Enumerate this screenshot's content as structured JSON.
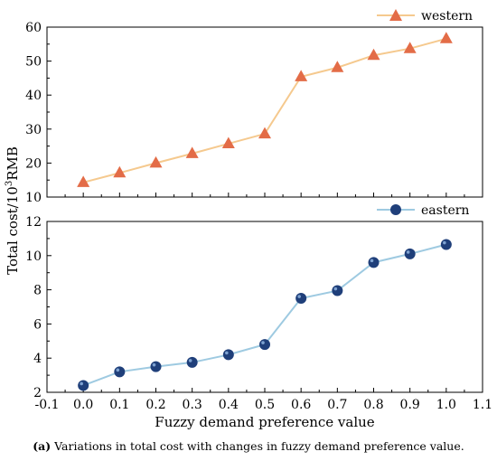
{
  "chart_data": [
    {
      "type": "line",
      "x": [
        0.0,
        0.1,
        0.2,
        0.3,
        0.4,
        0.5,
        0.6,
        0.7,
        0.8,
        0.9,
        1.0
      ],
      "series": [
        {
          "name": "western",
          "values": [
            14.3,
            17.1,
            20.0,
            22.8,
            25.7,
            28.6,
            45.4,
            48.1,
            51.7,
            53.7,
            56.6
          ],
          "color": "#f5c98e",
          "marker": "triangle",
          "marker_color": "#e36c47"
        }
      ],
      "ylim": [
        10,
        60
      ],
      "yticks": [
        "10",
        "20",
        "30",
        "40",
        "50",
        "60"
      ],
      "legend_position": "top-right"
    },
    {
      "type": "line",
      "x": [
        0.0,
        0.1,
        0.2,
        0.3,
        0.4,
        0.5,
        0.6,
        0.7,
        0.8,
        0.9,
        1.0
      ],
      "series": [
        {
          "name": "eastern",
          "values": [
            2.4,
            3.2,
            3.5,
            3.75,
            4.2,
            4.8,
            7.5,
            7.95,
            9.6,
            10.1,
            10.65
          ],
          "color": "#9ecae1",
          "marker": "circle",
          "marker_color": "#1f3f7a"
        }
      ],
      "ylim": [
        2,
        12
      ],
      "yticks": [
        "2",
        "4",
        "6",
        "8",
        "10",
        "12"
      ],
      "xlim": [
        -0.1,
        1.1
      ],
      "xticks": [
        "-0.1",
        "0.0",
        "0.1",
        "0.2",
        "0.3",
        "0.4",
        "0.5",
        "0.6",
        "0.7",
        "0.8",
        "0.9",
        "1.0",
        "1.1"
      ],
      "legend_position": "top-right"
    }
  ],
  "xlabel": "Fuzzy demand preference value",
  "ylabel_main": "Total cost/10",
  "ylabel_sup": "3",
  "ylabel_unit": "RMB",
  "caption_tag": "(a)",
  "caption_text": " Variations in total cost with changes in fuzzy demand preference value."
}
